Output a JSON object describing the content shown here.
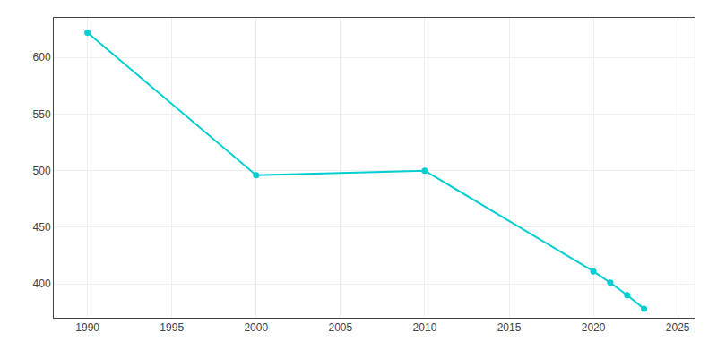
{
  "chart_data": {
    "type": "line",
    "x": [
      1990,
      2000,
      2010,
      2020,
      2021,
      2022,
      2023
    ],
    "values": [
      622,
      496,
      500,
      411,
      401,
      390,
      378
    ],
    "color": "#00CED1",
    "marker": "circle",
    "xlim": [
      1988,
      2026
    ],
    "ylim": [
      370,
      635
    ],
    "xticks": [
      1990,
      1995,
      2000,
      2005,
      2010,
      2015,
      2020,
      2025
    ],
    "yticks": [
      400,
      450,
      500,
      550,
      600
    ],
    "grid": true
  }
}
